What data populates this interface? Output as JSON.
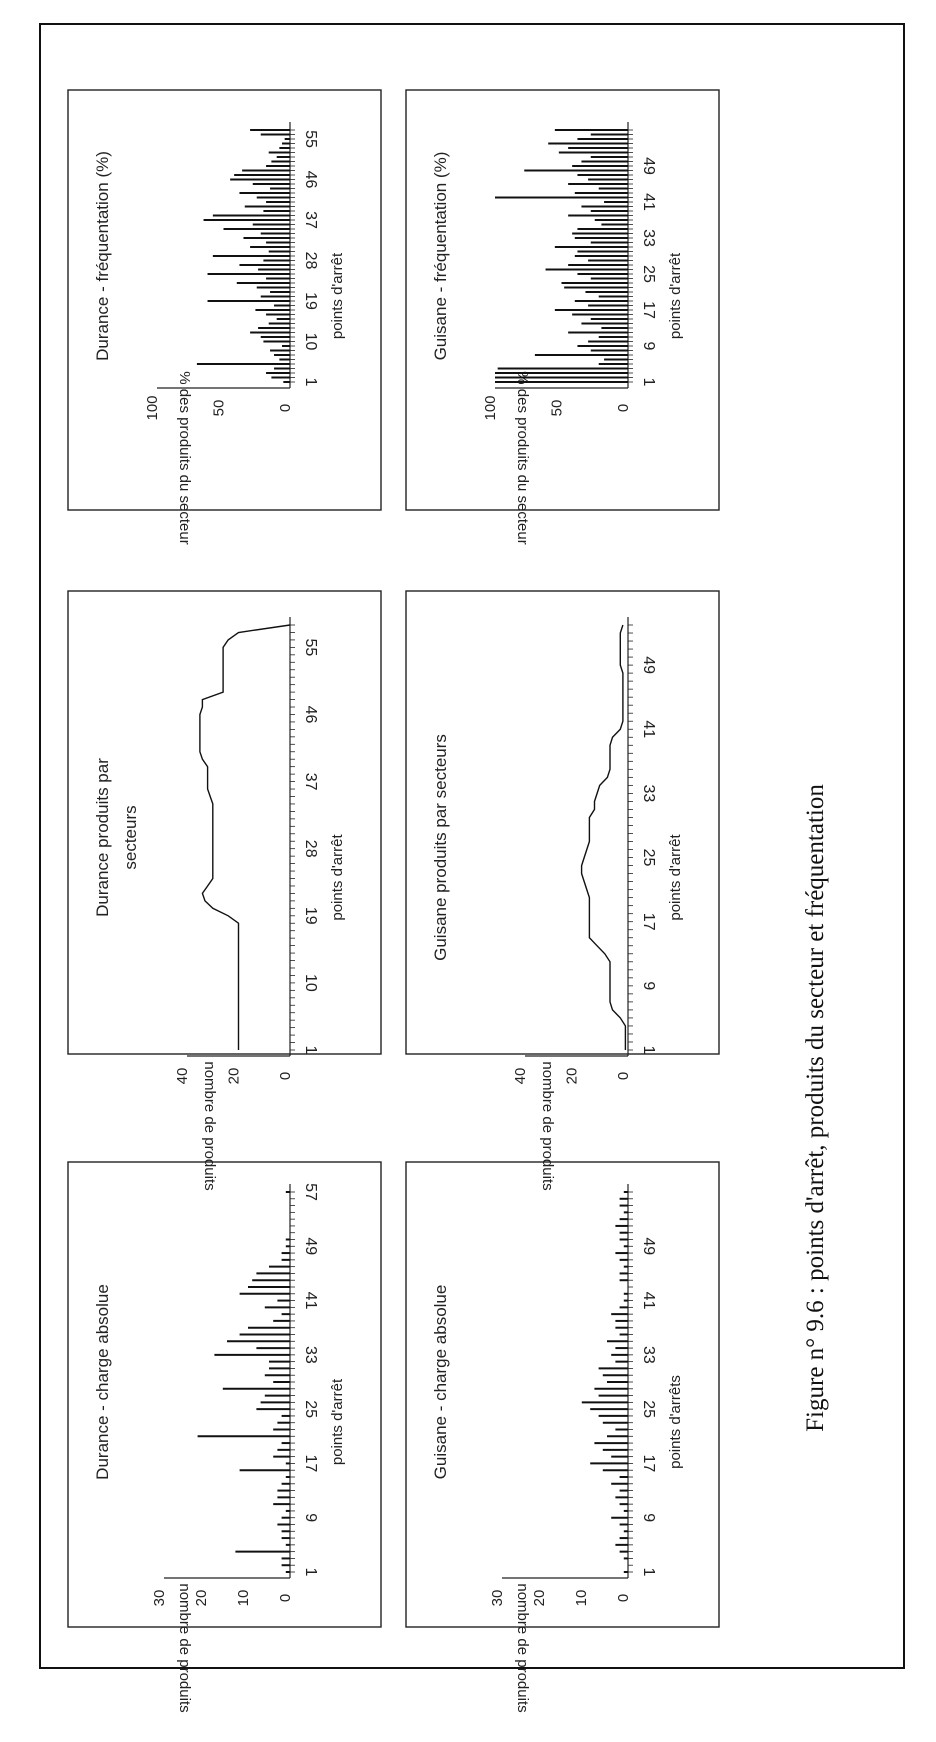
{
  "caption": "Figure n° 9.6 : points d'arrêt, produits du secteur et fréquentation",
  "chart_data": [
    {
      "type": "bar",
      "title": "Durance - charge absolue",
      "xlabel": "points d'arrêt",
      "ylabel": "nombre de produits",
      "ylim": [
        0,
        30
      ],
      "yticks": [
        "30",
        "20",
        "10",
        "0"
      ],
      "xticks": [
        "1",
        "9",
        "17",
        "25",
        "33",
        "41",
        "49",
        "57"
      ],
      "x": [
        1,
        2,
        3,
        4,
        5,
        6,
        7,
        8,
        9,
        10,
        11,
        12,
        13,
        14,
        15,
        16,
        17,
        18,
        19,
        20,
        21,
        22,
        23,
        24,
        25,
        26,
        27,
        28,
        29,
        30,
        31,
        32,
        33,
        34,
        35,
        36,
        37,
        38,
        39,
        40,
        41,
        42,
        43,
        44,
        45,
        46,
        47,
        48,
        49,
        50,
        51,
        52,
        53,
        54,
        55,
        56,
        57
      ],
      "values": [
        1,
        2,
        2,
        13,
        1,
        2,
        2,
        3,
        2,
        1,
        4,
        3,
        3,
        2,
        1,
        12,
        1,
        4,
        3,
        2,
        22,
        4,
        3,
        2,
        8,
        7,
        6,
        16,
        4,
        6,
        5,
        5,
        18,
        8,
        15,
        12,
        10,
        4,
        2,
        6,
        3,
        12,
        10,
        9,
        8,
        5,
        2,
        2,
        1,
        1,
        0,
        0,
        0,
        0,
        0,
        0,
        1
      ]
    },
    {
      "type": "line",
      "title": "Durance produits par secteurs",
      "xlabel": "points d'arrêt",
      "ylabel": "nombre de produits",
      "ylim": [
        0,
        40
      ],
      "yticks": [
        "40",
        "20",
        "0"
      ],
      "xticks": [
        "1",
        "10",
        "19",
        "28",
        "37",
        "46",
        "55"
      ],
      "x": [
        1,
        18,
        19,
        20,
        21,
        22,
        23,
        24,
        25,
        26,
        27,
        28,
        29,
        30,
        31,
        32,
        33,
        34,
        35,
        36,
        37,
        38,
        39,
        40,
        41,
        42,
        43,
        44,
        45,
        46,
        47,
        48,
        49,
        50,
        51,
        52,
        53,
        54,
        55,
        56,
        57,
        58
      ],
      "values": [
        20,
        20,
        24,
        30,
        33,
        34,
        32,
        30,
        30,
        30,
        30,
        30,
        30,
        30,
        30,
        30,
        30,
        30,
        31,
        32,
        32,
        32,
        32,
        34,
        35,
        35,
        35,
        35,
        35,
        35,
        34,
        34,
        26,
        26,
        26,
        26,
        26,
        26,
        26,
        24,
        20,
        0
      ]
    },
    {
      "type": "bar",
      "title": "Durance - fréquentation (%)",
      "xlabel": "points d'arrêt",
      "ylabel": "% des produits du secteur",
      "ylim": [
        0,
        100
      ],
      "yticks": [
        "100",
        "50",
        "0"
      ],
      "xticks": [
        "1",
        "10",
        "19",
        "28",
        "37",
        "46",
        "55"
      ],
      "x": [
        1,
        2,
        3,
        4,
        5,
        6,
        7,
        8,
        9,
        10,
        11,
        12,
        13,
        14,
        15,
        16,
        17,
        18,
        19,
        20,
        21,
        22,
        23,
        24,
        25,
        26,
        27,
        28,
        29,
        30,
        31,
        32,
        33,
        34,
        35,
        36,
        37,
        38,
        39,
        40,
        41,
        42,
        43,
        44,
        45,
        46,
        47,
        48,
        49,
        50,
        51,
        52,
        53,
        54,
        55,
        56,
        57
      ],
      "values": [
        5,
        14,
        18,
        12,
        70,
        8,
        12,
        15,
        6,
        20,
        22,
        30,
        24,
        16,
        10,
        18,
        26,
        12,
        62,
        22,
        15,
        25,
        40,
        18,
        62,
        24,
        38,
        20,
        58,
        16,
        30,
        18,
        35,
        22,
        50,
        28,
        65,
        58,
        20,
        34,
        18,
        25,
        38,
        15,
        28,
        45,
        42,
        36,
        18,
        14,
        10,
        16,
        8,
        6,
        4,
        22,
        30
      ]
    },
    {
      "type": "bar",
      "title": "Guisane - charge absolue",
      "xlabel": "points d'arrêts",
      "ylabel": "nombre de produits",
      "ylim": [
        0,
        30
      ],
      "yticks": [
        "30",
        "20",
        "10",
        "0"
      ],
      "xticks": [
        "1",
        "9",
        "17",
        "25",
        "33",
        "41",
        "49"
      ],
      "x": [
        1,
        2,
        3,
        4,
        5,
        6,
        7,
        8,
        9,
        10,
        11,
        12,
        13,
        14,
        15,
        16,
        17,
        18,
        19,
        20,
        21,
        22,
        23,
        24,
        25,
        26,
        27,
        28,
        29,
        30,
        31,
        32,
        33,
        34,
        35,
        36,
        37,
        38,
        39,
        40,
        41,
        42,
        43,
        44,
        45,
        46,
        47,
        48,
        49,
        50,
        51,
        52,
        53,
        54,
        55,
        56,
        57
      ],
      "values": [
        1,
        0,
        1,
        2,
        3,
        2,
        1,
        2,
        4,
        1,
        2,
        3,
        2,
        4,
        2,
        6,
        9,
        4,
        6,
        8,
        5,
        3,
        6,
        7,
        9,
        11,
        7,
        8,
        5,
        6,
        7,
        3,
        4,
        3,
        5,
        2,
        3,
        3,
        4,
        2,
        1,
        1,
        0,
        2,
        2,
        1,
        2,
        3,
        1,
        2,
        2,
        3,
        2,
        1,
        2,
        2,
        1
      ]
    },
    {
      "type": "line",
      "title": "Guisane produits par secteurs",
      "xlabel": "points d'arrêt",
      "ylabel": "nombre de produits",
      "ylim": [
        0,
        40
      ],
      "yticks": [
        "40",
        "20",
        "0"
      ],
      "xticks": [
        "1",
        "9",
        "17",
        "25",
        "33",
        "41",
        "49"
      ],
      "x": [
        1,
        4,
        5,
        6,
        7,
        8,
        9,
        10,
        11,
        12,
        13,
        14,
        15,
        16,
        17,
        18,
        19,
        20,
        21,
        22,
        23,
        24,
        25,
        26,
        27,
        28,
        29,
        30,
        31,
        32,
        33,
        34,
        35,
        36,
        37,
        38,
        39,
        40,
        41,
        42,
        43,
        44,
        45,
        46,
        47,
        48,
        49,
        50,
        51,
        52,
        53,
        54
      ],
      "values": [
        1,
        1,
        3,
        6,
        7,
        7,
        7,
        7,
        7,
        7,
        9,
        12,
        15,
        15,
        15,
        15,
        15,
        15,
        16,
        17,
        18,
        18,
        17,
        16,
        15,
        15,
        15,
        15,
        13,
        13,
        12,
        11,
        8,
        7,
        7,
        7,
        7,
        6,
        3,
        2,
        2,
        2,
        2,
        2,
        2,
        2,
        3,
        3,
        3,
        3,
        3,
        2
      ]
    },
    {
      "type": "bar",
      "title": "Guisane - fréquentation (%)",
      "xlabel": "points d'arrêt",
      "ylabel": "% des produits du secteur",
      "ylim": [
        0,
        100
      ],
      "yticks": [
        "100",
        "50",
        "0"
      ],
      "xticks": [
        "1",
        "9",
        "17",
        "25",
        "33",
        "41",
        "49"
      ],
      "x": [
        1,
        2,
        3,
        4,
        5,
        6,
        7,
        8,
        9,
        10,
        11,
        12,
        13,
        14,
        15,
        16,
        17,
        18,
        19,
        20,
        21,
        22,
        23,
        24,
        25,
        26,
        27,
        28,
        29,
        30,
        31,
        32,
        33,
        34,
        35,
        36,
        37,
        38,
        39,
        40,
        41,
        42,
        43,
        44,
        45,
        46,
        47,
        48,
        49,
        50,
        51,
        52,
        53,
        54,
        55,
        56,
        57
      ],
      "values": [
        100,
        100,
        100,
        98,
        22,
        18,
        70,
        28,
        38,
        30,
        22,
        45,
        20,
        35,
        28,
        42,
        55,
        30,
        40,
        22,
        32,
        48,
        50,
        28,
        38,
        62,
        45,
        30,
        40,
        38,
        55,
        28,
        40,
        42,
        38,
        20,
        25,
        45,
        28,
        35,
        18,
        100,
        40,
        22,
        45,
        30,
        38,
        78,
        42,
        35,
        28,
        52,
        45,
        60,
        38,
        28,
        55
      ]
    }
  ]
}
